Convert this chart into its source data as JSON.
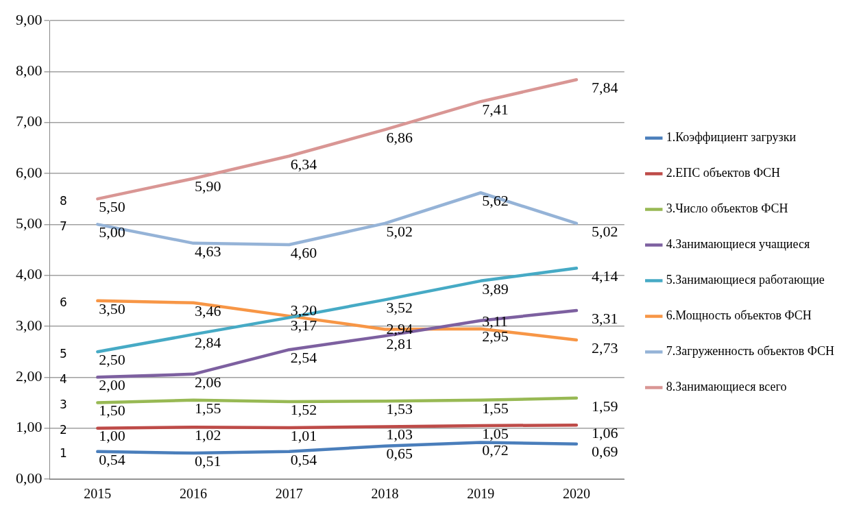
{
  "chart_data": {
    "type": "line",
    "categories": [
      "2015",
      "2016",
      "2017",
      "2018",
      "2019",
      "2020"
    ],
    "ylim": [
      0,
      9
    ],
    "yticks": [
      {
        "value": 0,
        "label": "0,00"
      },
      {
        "value": 1,
        "label": "1,00"
      },
      {
        "value": 2,
        "label": "2,00"
      },
      {
        "value": 3,
        "label": "3,00"
      },
      {
        "value": 4,
        "label": "4,00"
      },
      {
        "value": 5,
        "label": "5,00"
      },
      {
        "value": 6,
        "label": "6,00"
      },
      {
        "value": 7,
        "label": "7,00"
      },
      {
        "value": 8,
        "label": "8,00"
      },
      {
        "value": 9,
        "label": "9,00"
      }
    ],
    "grid": "y",
    "legend": "right",
    "marker": "none",
    "line_style": "solid",
    "series": [
      {
        "name": "1.Коэффициент загрузки",
        "color": "#4a7ebb",
        "values": [
          0.54,
          0.51,
          0.54,
          0.65,
          0.72,
          0.69
        ],
        "value_labels": [
          "0,54",
          "0,51",
          "0,54",
          "0,65",
          "0,72",
          "0,69"
        ]
      },
      {
        "name": "2.ЕПС объектов ФСН",
        "color": "#be4b48",
        "values": [
          1.0,
          1.02,
          1.01,
          1.03,
          1.05,
          1.06
        ],
        "value_labels": [
          "1,00",
          "1,02",
          "1,01",
          "1,03",
          "1,05",
          "1,06"
        ]
      },
      {
        "name": "3.Число объектов ФСН",
        "color": "#98b954",
        "values": [
          1.5,
          1.55,
          1.52,
          1.53,
          1.55,
          1.59
        ],
        "value_labels": [
          "1,50",
          "1,55",
          "1,52",
          "1,53",
          "1,55",
          "1,59"
        ]
      },
      {
        "name": "4.Занимающиеся учащиеся",
        "color": "#7d60a0",
        "values": [
          2.0,
          2.06,
          2.54,
          2.81,
          3.11,
          3.31
        ],
        "value_labels": [
          "2,00",
          "2,06",
          "2,54",
          "2,81",
          "3,11",
          "3,31"
        ]
      },
      {
        "name": "5.Занимающиеся работающие",
        "color": "#46aac5",
        "values": [
          2.5,
          2.84,
          3.17,
          3.52,
          3.89,
          4.14
        ],
        "value_labels": [
          "2,50",
          "2,84",
          "3,17",
          "3,52",
          "3,89",
          "4,14"
        ]
      },
      {
        "name": "6.Мощность объектов ФСН",
        "color": "#f79646",
        "values": [
          3.5,
          3.46,
          3.2,
          2.94,
          2.95,
          2.73
        ],
        "value_labels": [
          "3,50",
          "3,46",
          "3,20",
          "2,94",
          "2,95",
          "2,73"
        ]
      },
      {
        "name": "7.Загруженность объектов ФСН",
        "color": "#95b3d7",
        "values": [
          5.0,
          4.63,
          4.6,
          5.02,
          5.62,
          5.02
        ],
        "value_labels": [
          "5,00",
          "4,63",
          "4,60",
          "5,02",
          "5,62",
          "5,02"
        ]
      },
      {
        "name": "8.Занимающиеся всего",
        "color": "#d99694",
        "values": [
          5.5,
          5.9,
          6.34,
          6.86,
          7.41,
          7.84
        ],
        "value_labels": [
          "5,50",
          "5,90",
          "6,34",
          "6,86",
          "7,41",
          "7,84"
        ]
      }
    ],
    "annotations": [
      {
        "text": "1",
        "x": "2015",
        "y": 0.54
      },
      {
        "text": "2",
        "x": "2015",
        "y": 1.0
      },
      {
        "text": "3",
        "x": "2015",
        "y": 1.5
      },
      {
        "text": "4",
        "x": "2015",
        "y": 2.0
      },
      {
        "text": "5",
        "x": "2015",
        "y": 2.5
      },
      {
        "text": "6",
        "x": "2015",
        "y": 3.5
      },
      {
        "text": "7",
        "x": "2015",
        "y": 5.0
      },
      {
        "text": "8",
        "x": "2015",
        "y": 5.5
      }
    ]
  }
}
